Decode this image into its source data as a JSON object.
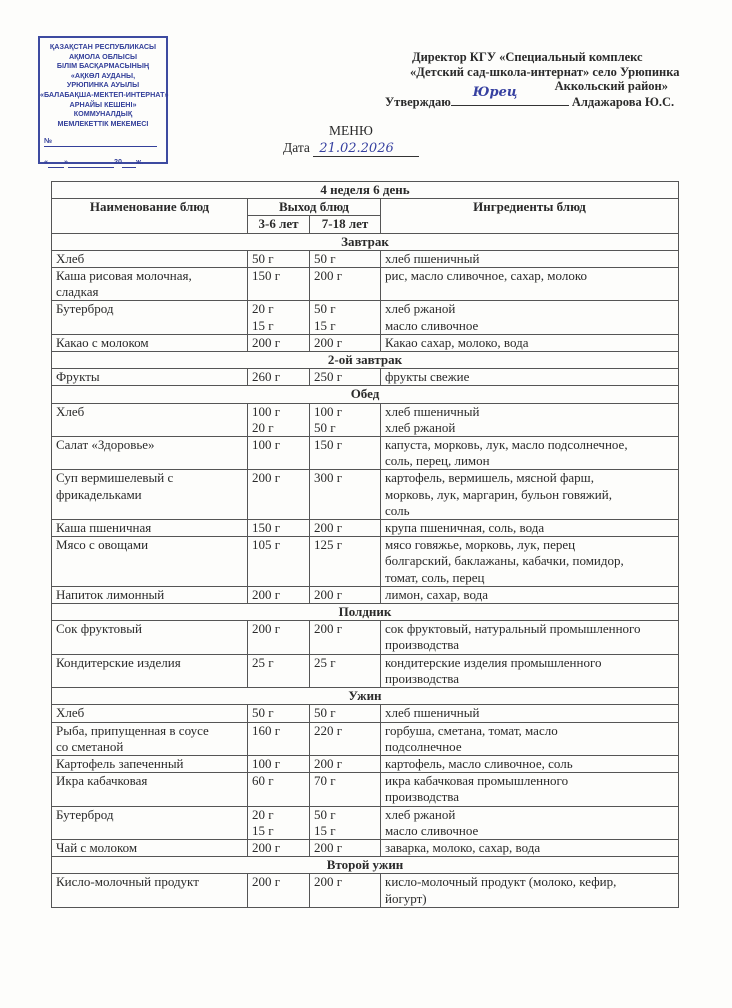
{
  "stamp": {
    "lines": [
      "ҚАЗАҚСТАН РЕСПУБЛИКАСЫ",
      "АҚМОЛА ОБЛЫСЫ",
      "БІЛІМ БАСҚАРМАСЫНЫҢ",
      "«АҚКӨЛ АУДАНЫ,",
      "УРЮПИНКА АУЫЛЫ",
      "«БАЛАБАҚША-МЕКТЕП-ИНТЕРНАТ»",
      "АРНАЙЫ КЕШЕНІ»",
      "КОММУНАЛДЫҚ",
      "МЕМЛЕКЕТТІК МЕКЕМЕСІ"
    ],
    "number_label": "№",
    "date_line_quote_open": "«",
    "date_line_quote_close": "»",
    "date_line_year": "20",
    "date_line_suffix": "ж."
  },
  "approval": {
    "line1": "Директор КГУ «Специальный комплекс",
    "line2": "«Детский сад-школа-интернат» село Урюпинка",
    "line3": "Аккольский район»",
    "approve_label": "Утверждаю",
    "signature": "Юрец",
    "name": "Алдажарова Ю.С."
  },
  "title": "МЕНЮ",
  "date_label": "Дата",
  "date_value": "21.02.2026",
  "table": {
    "week_day": "4 неделя  6 день",
    "col_name": "Наименование блюд",
    "col_output": "Выход блюд",
    "col_age1": "3-6 лет",
    "col_age2": "7-18 лет",
    "col_ingredients": "Ингредиенты блюд",
    "sections": [
      {
        "title": "Завтрак",
        "items": [
          {
            "name": "Хлеб",
            "a": "50 г",
            "b": "50 г",
            "ing": "хлеб пшеничный"
          },
          {
            "name": "Каша рисовая молочная,\nсладкая",
            "a": "150 г",
            "b": "200 г",
            "ing": "рис, масло сливочное, сахар, молоко"
          },
          {
            "name": "Бутерброд",
            "a": "20 г\n15 г",
            "b": "50 г\n15 г",
            "ing": "хлеб ржаной\nмасло сливочное"
          },
          {
            "name": "Какао  с молоком",
            "a": "200 г",
            "b": "200 г",
            "ing": "Какао  сахар, молоко, вода"
          }
        ]
      },
      {
        "title": "2-ой завтрак",
        "items": [
          {
            "name": "Фрукты",
            "a": "260 г",
            "b": "250 г",
            "ing": "фрукты свежие"
          }
        ]
      },
      {
        "title": "Обед",
        "items": [
          {
            "name": "Хлеб",
            "a": "100 г\n20 г",
            "b": "100 г\n50 г",
            "ing": "хлеб пшеничный\nхлеб ржаной"
          },
          {
            "name": "Салат «Здоровье»",
            "a": "100 г",
            "b": "150 г",
            "ing": "капуста, морковь, лук, масло подсолнечное,\nсоль, перец, лимон"
          },
          {
            "name": "Суп вермишелевый с\nфрикадельками",
            "a": "200 г",
            "b": "300 г",
            "ing": "картофель, вермишель, мясной фарш,\nморковь, лук, маргарин, бульон говяжий,\nсоль"
          },
          {
            "name": "Каша пшеничная",
            "a": "150 г",
            "b": "200 г",
            "ing": "крупа пшеничная, соль, вода"
          },
          {
            "name": "Мясо с овощами",
            "a": "105 г",
            "b": "125 г",
            "ing": "мясо говяжье, морковь, лук, перец\nболгарский, баклажаны, кабачки, помидор,\nтомат, соль, перец"
          },
          {
            "name": "Напиток лимонный",
            "a": "200 г",
            "b": "200 г",
            "ing": "лимон, сахар, вода"
          }
        ]
      },
      {
        "title": "Полдник",
        "items": [
          {
            "name": "Сок фруктовый",
            "a": "200 г",
            "b": "200 г",
            "ing": "сок фруктовый, натуральный промышленного\nпроизводства"
          },
          {
            "name": "Кондитерские изделия",
            "a": "25 г",
            "b": "25 г",
            "ing": "кондитерские изделия промышленного\nпроизводства"
          }
        ]
      },
      {
        "title": "Ужин",
        "items": [
          {
            "name": "Хлеб",
            "a": "50 г",
            "b": "50 г",
            "ing": "хлеб пшеничный"
          },
          {
            "name": "Рыба, припущенная в соусе\nсо сметаной",
            "a": "160 г",
            "b": "220 г",
            "ing": "горбуша, сметана, томат, масло\nподсолнечное"
          },
          {
            "name": "Картофель запеченный",
            "a": "100 г",
            "b": "200 г",
            "ing": "картофель,  масло сливочное, соль"
          },
          {
            "name": "Икра кабачковая",
            "a": "60 г",
            "b": "70 г",
            "ing": "икра кабачковая промышленного\nпроизводства"
          },
          {
            "name": "Бутерброд",
            "a": "20 г\n15 г",
            "b": "50 г\n15 г",
            "ing": "хлеб ржаной\nмасло сливочное"
          },
          {
            "name": "Чай с молоком",
            "a": "200 г",
            "b": "200 г",
            "ing": "заварка, молоко, сахар, вода"
          }
        ]
      },
      {
        "title": "Второй ужин",
        "items": [
          {
            "name": "Кисло-молочный продукт",
            "a": "200 г",
            "b": "200 г",
            "ing": "кисло-молочный продукт (молоко, кефир,\nйогурт)"
          }
        ]
      }
    ]
  }
}
